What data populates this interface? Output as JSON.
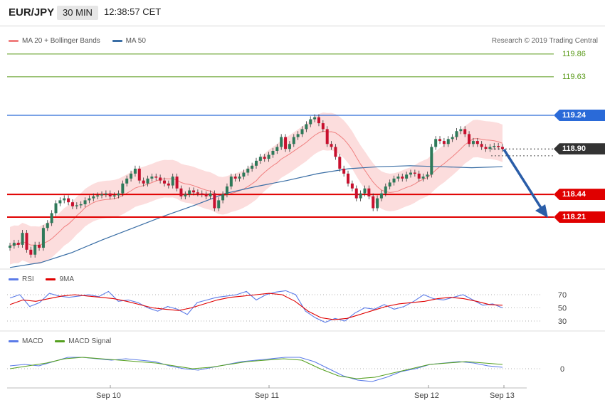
{
  "header": {
    "symbol": "EUR/JPY",
    "timeframe": "30 MIN",
    "time": "12:38:57 CET"
  },
  "legend_main": [
    {
      "label": "MA 20 + Bollinger Bands",
      "color": "#f08080"
    },
    {
      "label": "MA 50",
      "color": "#3a6ea5"
    }
  ],
  "copyright": "Research © 2019 Trading Central",
  "price_levels": [
    {
      "value": "119.86",
      "type": "target",
      "color": "#5a9a1a"
    },
    {
      "value": "119.63",
      "type": "target",
      "color": "#5a9a1a"
    },
    {
      "value": "119.24",
      "type": "resistance",
      "color": "#2a6ad8"
    },
    {
      "value": "118.90",
      "type": "last",
      "color": "#333333"
    },
    {
      "value": "118.44",
      "type": "support",
      "color": "#e00000"
    },
    {
      "value": "118.21",
      "type": "support",
      "color": "#e00000"
    }
  ],
  "legend_rsi": [
    {
      "label": "RSI",
      "color": "#5b7be8"
    },
    {
      "label": "9MA",
      "color": "#e00000"
    }
  ],
  "rsi_levels": [
    "70",
    "50",
    "30"
  ],
  "legend_macd": [
    {
      "label": "MACD",
      "color": "#5b7be8"
    },
    {
      "label": "MACD Signal",
      "color": "#55a020"
    }
  ],
  "macd_levels": [
    "0"
  ],
  "x_labels": [
    "Sep 10",
    "Sep 11",
    "Sep 12",
    "Sep 13"
  ],
  "chart_data": {
    "type": "candlestick",
    "ylim": [
      117.7,
      119.95
    ],
    "close_series": [
      117.92,
      117.95,
      117.93,
      118.05,
      117.88,
      117.83,
      117.93,
      117.9,
      118.1,
      118.15,
      118.25,
      118.35,
      118.38,
      118.4,
      118.36,
      118.32,
      118.33,
      118.34,
      118.38,
      118.4,
      118.42,
      118.43,
      118.44,
      118.45,
      118.42,
      118.43,
      118.45,
      118.55,
      118.6,
      118.65,
      118.7,
      118.58,
      118.55,
      118.6,
      118.62,
      118.61,
      118.58,
      118.55,
      118.53,
      118.62,
      118.5,
      118.42,
      118.44,
      118.48,
      118.46,
      118.45,
      118.44,
      118.42,
      118.45,
      118.3,
      118.38,
      118.44,
      118.52,
      118.62,
      118.6,
      118.62,
      118.66,
      118.7,
      118.73,
      118.78,
      118.82,
      118.8,
      118.84,
      118.88,
      118.92,
      119.02,
      118.9,
      118.95,
      119.02,
      119.05,
      119.1,
      119.15,
      119.2,
      119.22,
      119.16,
      119.1,
      118.95,
      118.92,
      118.82,
      118.7,
      118.65,
      118.55,
      118.5,
      118.4,
      118.45,
      118.5,
      118.42,
      118.3,
      118.4,
      118.45,
      118.52,
      118.56,
      118.6,
      118.62,
      118.6,
      118.64,
      118.66,
      118.65,
      118.6,
      118.62,
      118.64,
      118.92,
      119.0,
      118.98,
      118.95,
      119.0,
      119.02,
      119.08,
      119.1,
      119.05,
      118.95,
      118.98,
      118.95,
      118.92,
      118.9,
      118.92,
      118.93,
      118.92,
      118.9
    ],
    "ma50_series": [
      117.7,
      117.75,
      117.85,
      117.98,
      118.1,
      118.22,
      118.33,
      118.45,
      118.52,
      118.58,
      118.65,
      118.7,
      118.72,
      118.73,
      118.72,
      118.71,
      118.72
    ],
    "rsi_series": [
      65,
      70,
      52,
      58,
      72,
      68,
      66,
      68,
      70,
      67,
      75,
      60,
      62,
      58,
      50,
      45,
      52,
      48,
      40,
      58,
      62,
      66,
      68,
      70,
      75,
      62,
      70,
      74,
      76,
      70,
      45,
      35,
      28,
      34,
      30,
      42,
      50,
      48,
      55,
      48,
      52,
      60,
      70,
      64,
      62,
      66,
      70,
      62,
      54,
      56,
      50
    ],
    "rsi_ma9_series": [
      55,
      62,
      60,
      64,
      68,
      70,
      68,
      66,
      64,
      60,
      55,
      50,
      48,
      46,
      50,
      56,
      62,
      66,
      68,
      70,
      72,
      70,
      60,
      45,
      35,
      32,
      34,
      40,
      46,
      52,
      56,
      58,
      60,
      64,
      66,
      64,
      60,
      55,
      54
    ],
    "macd_series": [
      0.02,
      0.03,
      0.02,
      0.05,
      0.08,
      0.08,
      0.07,
      0.06,
      0.07,
      0.06,
      0.05,
      0.02,
      0.0,
      -0.01,
      0.01,
      0.03,
      0.05,
      0.06,
      0.07,
      0.08,
      0.08,
      0.05,
      0.0,
      -0.05,
      -0.08,
      -0.09,
      -0.06,
      -0.02,
      0.0,
      0.03,
      0.04,
      0.05,
      0.04,
      0.02,
      0.01
    ],
    "macd_signal_series": [
      0.0,
      0.02,
      0.04,
      0.07,
      0.08,
      0.07,
      0.06,
      0.05,
      0.04,
      0.02,
      0.0,
      0.01,
      0.03,
      0.05,
      0.06,
      0.07,
      0.06,
      0.0,
      -0.05,
      -0.07,
      -0.06,
      -0.03,
      0.0,
      0.03,
      0.04,
      0.05,
      0.04,
      0.03
    ]
  }
}
